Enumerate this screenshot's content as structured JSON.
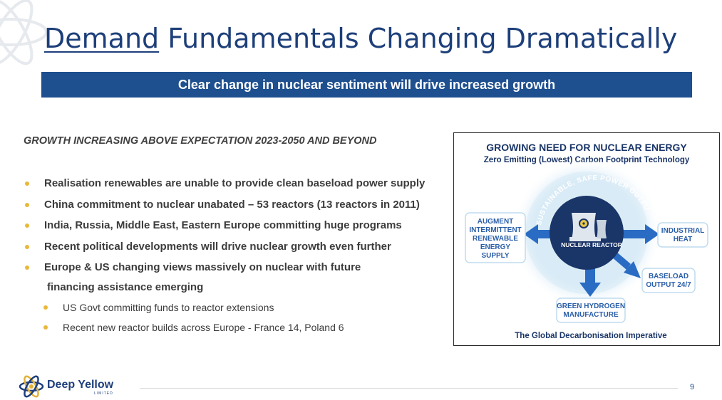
{
  "slide": {
    "title_underlined": "Demand",
    "title_rest": " Fundamentals Changing Dramatically",
    "banner": "Clear change in nuclear sentiment will drive increased growth",
    "subheading": "GROWTH INCREASING ABOVE EXPECTATION 2023-2050 AND BEYOND",
    "bullets": [
      "Realisation renewables are unable to provide clean baseload power supply",
      "China commitment to nuclear unabated – 53 reactors (13 reactors in 2011)",
      "India, Russia, Middle East, Eastern Europe committing huge programs",
      "Recent political developments will drive nuclear growth even further",
      "Europe & US changing views massively on nuclear with future",
      "financing assistance emerging"
    ],
    "sub_bullets": [
      "US Govt committing funds to reactor extensions",
      "Recent new reactor builds across Europe - France 14, Poland 6"
    ],
    "page_number": "9"
  },
  "diagram": {
    "title": "GROWING NEED FOR NUCLEAR ENERGY",
    "subtitle": "Zero Emitting (Lowest) Carbon Footprint Technology",
    "arc_text": "SUSTAINABLE, SAFE POWER OUTPUT 24/7",
    "center_label": "NUCLEAR REACTOR",
    "left_box": [
      "AUGMENT",
      "INTERMITTENT",
      "RENEWABLE",
      "ENERGY",
      "SUPPLY"
    ],
    "right_box": [
      "INDUSTRIAL",
      "HEAT"
    ],
    "bottom_right_box": [
      "BASELOAD",
      "OUTPUT 24/7"
    ],
    "bottom_box": [
      "GREEN HYDROGEN",
      "MANUFACTURE"
    ],
    "footer": "The Global Decarbonisation Imperative"
  },
  "logo": {
    "name": "Deep Yellow",
    "sub": "LIMITED"
  },
  "colors": {
    "navy": "#1e4f8f",
    "title_blue": "#1d3f7a",
    "bullet_gold": "#e9b83a",
    "diagram_dark": "#1a3568",
    "arrow_blue": "#2a6cc4",
    "glow": "#cfe6f5"
  }
}
